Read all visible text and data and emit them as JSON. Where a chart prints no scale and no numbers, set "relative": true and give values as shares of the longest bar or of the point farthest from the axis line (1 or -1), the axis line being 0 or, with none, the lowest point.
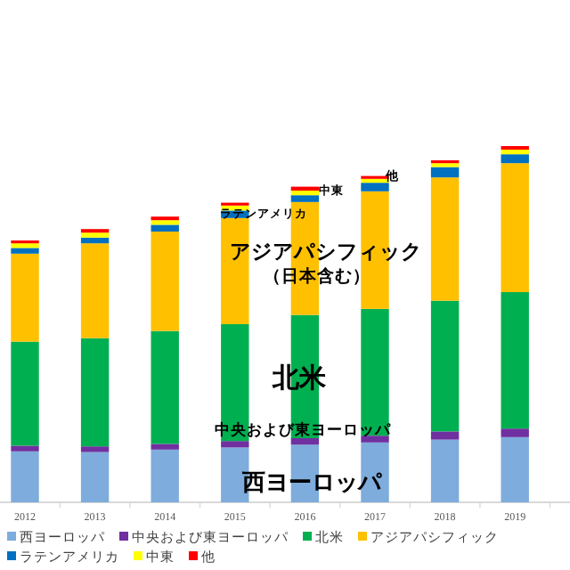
{
  "chart_data": {
    "type": "bar",
    "stacked": true,
    "relative": true,
    "legend": "bottom",
    "categories": [
      "2012",
      "2013",
      "2014",
      "2015",
      "2016",
      "2017",
      "2018",
      "2019"
    ],
    "series": [
      {
        "name": "西ヨーロッパ",
        "color": "#7eacdc",
        "values": [
          0.143,
          0.141,
          0.148,
          0.154,
          0.162,
          0.168,
          0.176,
          0.183
        ]
      },
      {
        "name": "中央および東ヨーロッパ",
        "color": "#7030a0",
        "values": [
          0.016,
          0.016,
          0.016,
          0.018,
          0.018,
          0.019,
          0.023,
          0.024
        ]
      },
      {
        "name": "北米",
        "color": "#00b050",
        "values": [
          0.292,
          0.304,
          0.317,
          0.328,
          0.346,
          0.356,
          0.367,
          0.383
        ]
      },
      {
        "name": "アジアパシフィック",
        "color": "#ffc000",
        "values": [
          0.247,
          0.266,
          0.279,
          0.298,
          0.317,
          0.33,
          0.346,
          0.362
        ]
      },
      {
        "name": "ラテンアメリカ",
        "color": "#0070c0",
        "values": [
          0.016,
          0.016,
          0.019,
          0.021,
          0.019,
          0.024,
          0.029,
          0.025
        ]
      },
      {
        "name": "中東",
        "color": "#ffff00",
        "values": [
          0.013,
          0.014,
          0.013,
          0.014,
          0.013,
          0.011,
          0.011,
          0.013
        ]
      },
      {
        "name": "他",
        "color": "#ff0000",
        "values": [
          0.008,
          0.01,
          0.01,
          0.008,
          0.011,
          0.008,
          0.008,
          0.01
        ]
      }
    ],
    "annotations": [
      "西ヨーロッパ",
      "中央および東ヨーロッパ",
      "北米",
      "アジアパシフィック",
      "（日本含む）",
      "ラテンアメリカ",
      "中東",
      "他"
    ]
  }
}
